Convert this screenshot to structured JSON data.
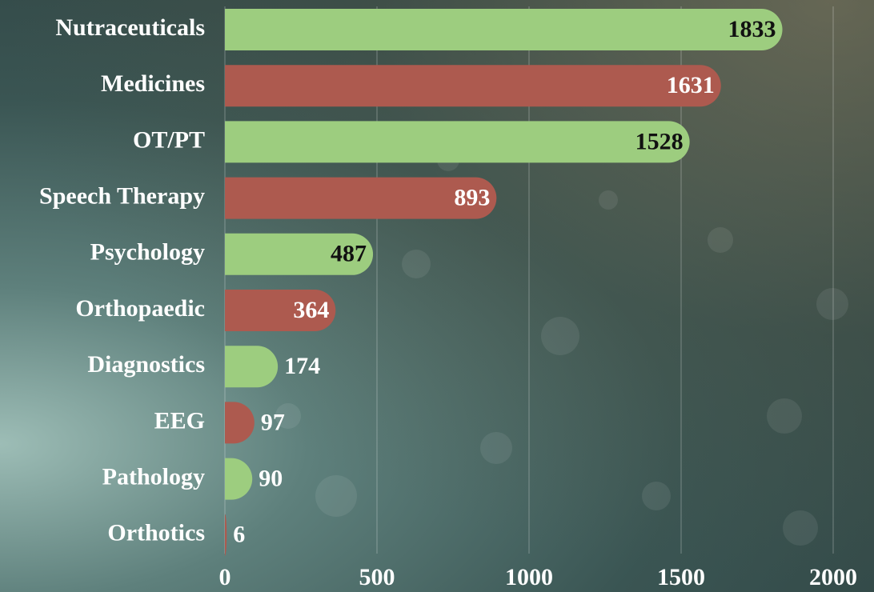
{
  "chart_data": {
    "type": "bar",
    "orientation": "horizontal",
    "categories": [
      "Nutraceuticals",
      "Medicines",
      "OT/PT",
      "Speech Therapy",
      "Psychology",
      "Orthopaedic",
      "Diagnostics",
      "EEG",
      "Pathology",
      "Orthotics"
    ],
    "values": [
      1833,
      1631,
      1528,
      893,
      487,
      364,
      174,
      97,
      90,
      6
    ],
    "colors": [
      "#9dcd7f",
      "#ad5a4f",
      "#9dcd7f",
      "#ad5a4f",
      "#9dcd7f",
      "#ad5a4f",
      "#9dcd7f",
      "#ad5a4f",
      "#9dcd7f",
      "#ad5a4f"
    ],
    "xlim": [
      0,
      2000
    ],
    "xticks": [
      0,
      500,
      1000,
      1500,
      2000
    ],
    "grid": true
  }
}
